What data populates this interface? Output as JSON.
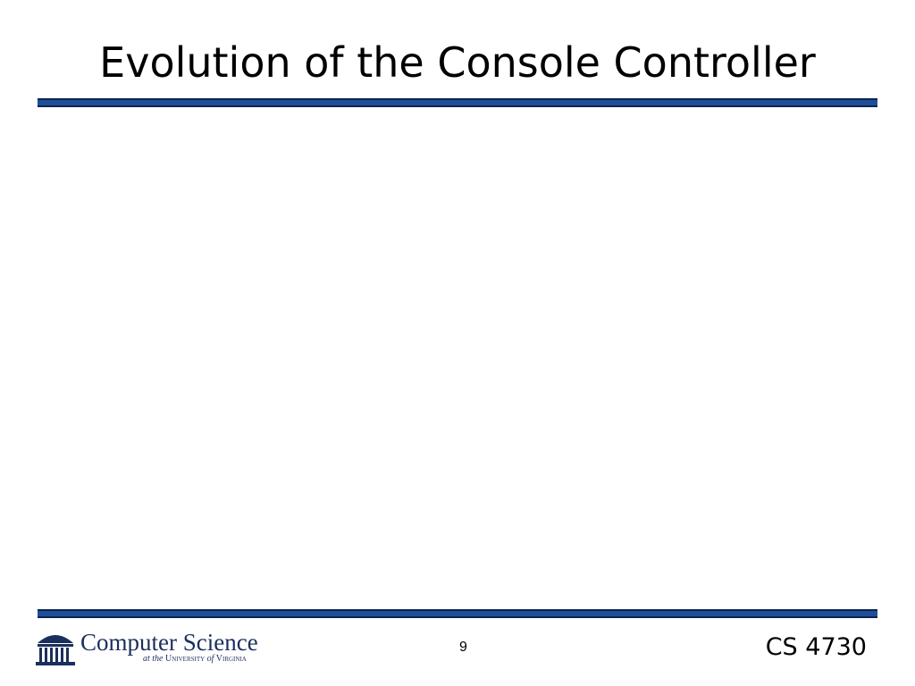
{
  "slide": {
    "title": "Evolution of the Console Controller",
    "logo": {
      "name": "Computer Science",
      "subtitle_prefix": "at the",
      "university": "University",
      "of": "of",
      "state": "Virginia"
    },
    "page_number": "9",
    "course": "CS 4730"
  }
}
